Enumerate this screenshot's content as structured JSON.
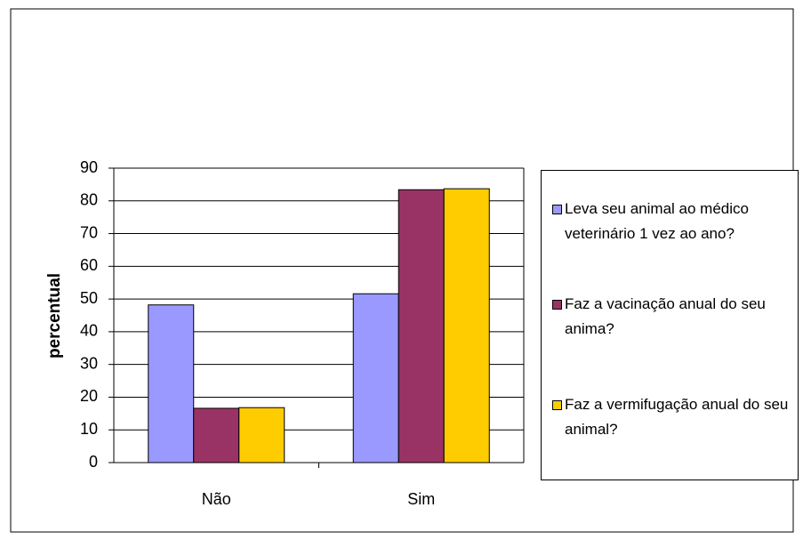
{
  "chart_data": {
    "type": "bar",
    "y_label": "percentual",
    "categories": [
      "Não",
      "Sim"
    ],
    "series": [
      {
        "name": "Leva seu animal ao médico veterinário 1 vez ao ano?",
        "color": "#9999ff",
        "values": [
          48.2,
          51.6
        ]
      },
      {
        "name": "Faz a vacinação anual do seu anima?",
        "color": "#993366",
        "values": [
          16.6,
          83.4
        ]
      },
      {
        "name": "Faz a vermifugação anual do seu animal?",
        "color": "#ffcc00",
        "values": [
          16.8,
          83.7
        ]
      }
    ],
    "ylim": [
      0,
      90
    ],
    "yticks": [
      0,
      10,
      20,
      30,
      40,
      50,
      60,
      70,
      80,
      90
    ],
    "grid": true
  }
}
